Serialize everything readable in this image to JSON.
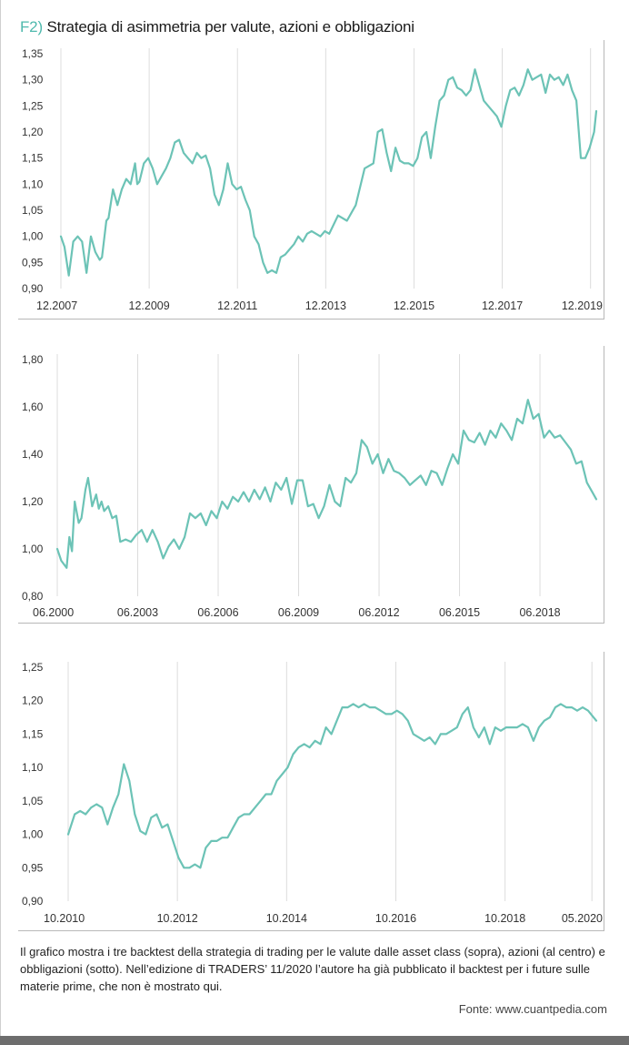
{
  "header": {
    "tag": "F2)",
    "title": "Strategia di asimmetria per valute, azioni e obbligazioni"
  },
  "colors": {
    "line": "#6cc3b6",
    "accent": "#4fb9ad",
    "grid": "#dcdcdc",
    "bottom_bar": "#6d6d6d"
  },
  "chart_data": [
    {
      "type": "line",
      "title": "",
      "xlabel": "",
      "ylabel": "",
      "ylim": [
        0.9,
        1.35
      ],
      "yticks": [
        "1,35",
        "1,30",
        "1,25",
        "1,20",
        "1,15",
        "1,10",
        "1,05",
        "1,00",
        "0,95",
        "0,90"
      ],
      "ytick_values": [
        1.35,
        1.3,
        1.25,
        1.2,
        1.15,
        1.1,
        1.05,
        1.0,
        0.95,
        0.9
      ],
      "xlim": [
        2007.92,
        2020.05
      ],
      "xticks": [
        "12.2007",
        "12.2009",
        "12.2011",
        "12.2013",
        "12.2015",
        "12.2017",
        "12.2019"
      ],
      "xtick_values": [
        2007.92,
        2009.92,
        2011.92,
        2013.92,
        2015.92,
        2017.92,
        2019.92
      ],
      "grid": "vertical",
      "series": [
        {
          "x": [
            2007.92,
            2008.0,
            2008.1,
            2008.2,
            2008.3,
            2008.4,
            2008.5,
            2008.6,
            2008.7,
            2008.8,
            2008.85,
            2008.95,
            2009.0,
            2009.1,
            2009.2,
            2009.3,
            2009.4,
            2009.5,
            2009.6,
            2009.65,
            2009.7,
            2009.8,
            2009.9,
            2010.0,
            2010.1,
            2010.2,
            2010.3,
            2010.4,
            2010.5,
            2010.6,
            2010.7,
            2010.8,
            2010.9,
            2011.0,
            2011.1,
            2011.2,
            2011.3,
            2011.4,
            2011.5,
            2011.6,
            2011.7,
            2011.8,
            2011.9,
            2012.0,
            2012.1,
            2012.2,
            2012.3,
            2012.4,
            2012.5,
            2012.6,
            2012.7,
            2012.8,
            2012.9,
            2013.0,
            2013.1,
            2013.2,
            2013.3,
            2013.4,
            2013.5,
            2013.6,
            2013.7,
            2013.8,
            2013.9,
            2014.0,
            2014.2,
            2014.4,
            2014.6,
            2014.8,
            2015.0,
            2015.1,
            2015.2,
            2015.3,
            2015.4,
            2015.5,
            2015.6,
            2015.7,
            2015.8,
            2015.9,
            2016.0,
            2016.1,
            2016.2,
            2016.3,
            2016.4,
            2016.5,
            2016.6,
            2016.7,
            2016.8,
            2016.9,
            2017.0,
            2017.1,
            2017.2,
            2017.3,
            2017.4,
            2017.5,
            2017.6,
            2017.7,
            2017.8,
            2017.9,
            2018.0,
            2018.1,
            2018.2,
            2018.3,
            2018.4,
            2018.5,
            2018.6,
            2018.7,
            2018.8,
            2018.9,
            2019.0,
            2019.1,
            2019.2,
            2019.3,
            2019.4,
            2019.5,
            2019.6,
            2019.7,
            2019.8,
            2019.9,
            2020.0,
            2020.05
          ],
          "values": [
            1.0,
            0.98,
            0.925,
            0.99,
            1.0,
            0.99,
            0.93,
            1.0,
            0.97,
            0.955,
            0.96,
            1.03,
            1.035,
            1.09,
            1.06,
            1.09,
            1.11,
            1.1,
            1.14,
            1.1,
            1.105,
            1.14,
            1.15,
            1.13,
            1.1,
            1.115,
            1.13,
            1.15,
            1.18,
            1.185,
            1.16,
            1.15,
            1.14,
            1.16,
            1.15,
            1.155,
            1.13,
            1.08,
            1.06,
            1.09,
            1.14,
            1.1,
            1.09,
            1.095,
            1.07,
            1.05,
            1.0,
            0.985,
            0.95,
            0.93,
            0.935,
            0.93,
            0.96,
            0.965,
            0.975,
            0.985,
            1.0,
            0.99,
            1.005,
            1.01,
            1.005,
            1.0,
            1.01,
            1.005,
            1.04,
            1.03,
            1.06,
            1.13,
            1.14,
            1.2,
            1.205,
            1.16,
            1.125,
            1.17,
            1.145,
            1.14,
            1.14,
            1.135,
            1.15,
            1.19,
            1.2,
            1.15,
            1.21,
            1.26,
            1.27,
            1.3,
            1.305,
            1.285,
            1.28,
            1.27,
            1.28,
            1.32,
            1.29,
            1.26,
            1.25,
            1.24,
            1.23,
            1.21,
            1.25,
            1.28,
            1.285,
            1.27,
            1.29,
            1.32,
            1.3,
            1.305,
            1.31,
            1.275,
            1.31,
            1.3,
            1.305,
            1.29,
            1.31,
            1.28,
            1.26,
            1.15,
            1.15,
            1.17,
            1.2,
            1.24
          ]
        }
      ]
    },
    {
      "type": "line",
      "title": "",
      "xlabel": "",
      "ylabel": "",
      "ylim": [
        0.8,
        1.8
      ],
      "yticks": [
        "1,80",
        "1,60",
        "1,40",
        "1,20",
        "1,00",
        "0,80"
      ],
      "ytick_values": [
        1.8,
        1.6,
        1.4,
        1.2,
        1.0,
        0.8
      ],
      "xlim": [
        2000.45,
        2020.55
      ],
      "xticks": [
        "06.2000",
        "06.2003",
        "06.2006",
        "06.2009",
        "06.2012",
        "06.2015",
        "06.2018"
      ],
      "xtick_values": [
        2000.45,
        2003.45,
        2006.45,
        2009.45,
        2012.45,
        2015.45,
        2018.45
      ],
      "grid": "vertical",
      "series": [
        {
          "x": [
            2000.45,
            2000.6,
            2000.8,
            2000.9,
            2001.0,
            2001.1,
            2001.25,
            2001.35,
            2001.5,
            2001.6,
            2001.75,
            2001.9,
            2002.0,
            2002.1,
            2002.2,
            2002.35,
            2002.5,
            2002.65,
            2002.8,
            2003.0,
            2003.2,
            2003.4,
            2003.6,
            2003.8,
            2004.0,
            2004.2,
            2004.4,
            2004.6,
            2004.8,
            2005.0,
            2005.2,
            2005.4,
            2005.6,
            2005.8,
            2006.0,
            2006.2,
            2006.4,
            2006.6,
            2006.8,
            2007.0,
            2007.2,
            2007.4,
            2007.6,
            2007.8,
            2008.0,
            2008.2,
            2008.4,
            2008.6,
            2008.8,
            2009.0,
            2009.2,
            2009.4,
            2009.6,
            2009.8,
            2010.0,
            2010.2,
            2010.4,
            2010.6,
            2010.8,
            2011.0,
            2011.2,
            2011.4,
            2011.6,
            2011.8,
            2012.0,
            2012.2,
            2012.4,
            2012.6,
            2012.8,
            2013.0,
            2013.2,
            2013.4,
            2013.6,
            2013.8,
            2014.0,
            2014.2,
            2014.4,
            2014.6,
            2014.8,
            2015.0,
            2015.2,
            2015.4,
            2015.6,
            2015.8,
            2016.0,
            2016.2,
            2016.4,
            2016.6,
            2016.8,
            2017.0,
            2017.2,
            2017.4,
            2017.6,
            2017.8,
            2018.0,
            2018.2,
            2018.4,
            2018.6,
            2018.8,
            2019.0,
            2019.2,
            2019.4,
            2019.6,
            2019.8,
            2020.0,
            2020.2,
            2020.4,
            2020.55
          ],
          "values": [
            1.0,
            0.95,
            0.92,
            1.05,
            0.99,
            1.2,
            1.11,
            1.13,
            1.25,
            1.3,
            1.18,
            1.23,
            1.17,
            1.2,
            1.16,
            1.18,
            1.13,
            1.14,
            1.03,
            1.04,
            1.03,
            1.06,
            1.08,
            1.03,
            1.08,
            1.03,
            0.96,
            1.01,
            1.04,
            1.0,
            1.05,
            1.15,
            1.13,
            1.15,
            1.1,
            1.16,
            1.13,
            1.2,
            1.17,
            1.22,
            1.2,
            1.24,
            1.2,
            1.25,
            1.21,
            1.26,
            1.2,
            1.28,
            1.25,
            1.3,
            1.19,
            1.29,
            1.29,
            1.18,
            1.19,
            1.13,
            1.18,
            1.27,
            1.2,
            1.18,
            1.3,
            1.28,
            1.32,
            1.46,
            1.43,
            1.36,
            1.4,
            1.32,
            1.38,
            1.33,
            1.32,
            1.3,
            1.27,
            1.29,
            1.31,
            1.27,
            1.33,
            1.32,
            1.27,
            1.34,
            1.4,
            1.36,
            1.5,
            1.46,
            1.45,
            1.49,
            1.44,
            1.5,
            1.47,
            1.53,
            1.5,
            1.46,
            1.55,
            1.53,
            1.63,
            1.55,
            1.57,
            1.47,
            1.5,
            1.47,
            1.48,
            1.45,
            1.42,
            1.36,
            1.37,
            1.28,
            1.24,
            1.21
          ]
        }
      ]
    },
    {
      "type": "line",
      "title": "",
      "xlabel": "",
      "ylabel": "",
      "ylim": [
        0.9,
        1.25
      ],
      "yticks": [
        "1,25",
        "1,20",
        "1,15",
        "1,10",
        "1,05",
        "1,00",
        "0,95",
        "0,90"
      ],
      "ytick_values": [
        1.25,
        1.2,
        1.15,
        1.1,
        1.05,
        1.0,
        0.95,
        0.9
      ],
      "xlim": [
        2010.78,
        2020.45
      ],
      "xticks": [
        "10.2010",
        "10.2012",
        "10.2014",
        "10.2016",
        "10.2018",
        "05.2020"
      ],
      "xtick_values": [
        2010.78,
        2012.78,
        2014.78,
        2016.78,
        2018.78,
        2020.37
      ],
      "grid": "vertical",
      "series": [
        {
          "x": [
            2010.78,
            2010.9,
            2011.0,
            2011.1,
            2011.2,
            2011.3,
            2011.4,
            2011.5,
            2011.6,
            2011.7,
            2011.8,
            2011.9,
            2012.0,
            2012.1,
            2012.2,
            2012.3,
            2012.4,
            2012.5,
            2012.6,
            2012.7,
            2012.8,
            2012.9,
            2013.0,
            2013.1,
            2013.2,
            2013.3,
            2013.4,
            2013.5,
            2013.6,
            2013.7,
            2013.8,
            2013.9,
            2014.0,
            2014.1,
            2014.2,
            2014.3,
            2014.4,
            2014.5,
            2014.6,
            2014.7,
            2014.8,
            2014.9,
            2015.0,
            2015.1,
            2015.2,
            2015.3,
            2015.4,
            2015.5,
            2015.6,
            2015.7,
            2015.8,
            2015.9,
            2016.0,
            2016.1,
            2016.2,
            2016.3,
            2016.4,
            2016.5,
            2016.6,
            2016.7,
            2016.8,
            2016.9,
            2017.0,
            2017.1,
            2017.2,
            2017.3,
            2017.4,
            2017.5,
            2017.6,
            2017.7,
            2017.8,
            2017.9,
            2018.0,
            2018.1,
            2018.2,
            2018.3,
            2018.4,
            2018.5,
            2018.6,
            2018.7,
            2018.8,
            2018.9,
            2019.0,
            2019.1,
            2019.2,
            2019.3,
            2019.4,
            2019.5,
            2019.6,
            2019.7,
            2019.8,
            2019.9,
            2020.0,
            2020.1,
            2020.2,
            2020.3,
            2020.4,
            2020.45
          ],
          "values": [
            1.0,
            1.03,
            1.035,
            1.03,
            1.04,
            1.045,
            1.04,
            1.015,
            1.04,
            1.06,
            1.105,
            1.08,
            1.03,
            1.005,
            1.0,
            1.025,
            1.03,
            1.01,
            1.015,
            0.99,
            0.965,
            0.95,
            0.95,
            0.955,
            0.95,
            0.98,
            0.99,
            0.99,
            0.995,
            0.995,
            1.01,
            1.025,
            1.03,
            1.03,
            1.04,
            1.05,
            1.06,
            1.06,
            1.08,
            1.09,
            1.1,
            1.12,
            1.13,
            1.135,
            1.13,
            1.14,
            1.135,
            1.16,
            1.15,
            1.17,
            1.19,
            1.19,
            1.195,
            1.19,
            1.195,
            1.19,
            1.19,
            1.185,
            1.18,
            1.18,
            1.185,
            1.18,
            1.17,
            1.15,
            1.145,
            1.14,
            1.145,
            1.135,
            1.15,
            1.15,
            1.155,
            1.16,
            1.18,
            1.19,
            1.16,
            1.145,
            1.16,
            1.135,
            1.16,
            1.155,
            1.16,
            1.16,
            1.16,
            1.165,
            1.16,
            1.14,
            1.16,
            1.17,
            1.175,
            1.19,
            1.195,
            1.19,
            1.19,
            1.185,
            1.19,
            1.185,
            1.175,
            1.17
          ]
        }
      ]
    }
  ],
  "caption": "Il grafico mostra i tre backtest della strategia di trading per le valute dalle asset class (sopra), azioni (al centro) e obbligazioni (sotto). Nell’edizione di TRADERS’ 11/2020 l’autore ha già pubblicato il backtest per i future sulle materie prime, che non è mostrato qui.",
  "source": "Fonte: www.cuantpedia.com"
}
